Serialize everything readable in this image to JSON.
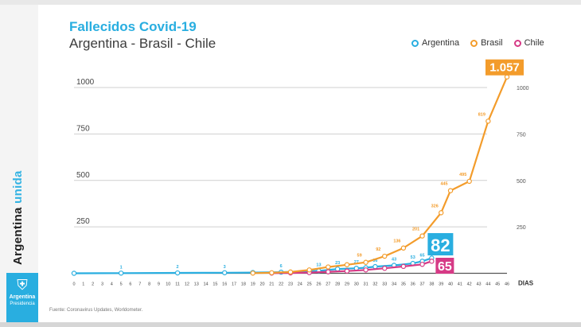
{
  "header": {
    "title": "Fallecidos Covid-19",
    "subtitle": "Argentina - Brasil - Chile"
  },
  "legend": [
    {
      "label": "Argentina",
      "color": "#29aee0"
    },
    {
      "label": "Brasil",
      "color": "#f39c2b"
    },
    {
      "label": "Chile",
      "color": "#d63a86"
    }
  ],
  "sidebar": {
    "brand_word1": "Argentina",
    "brand_word2": "unida",
    "badge_line1": "Argentina",
    "badge_line2": "Presidencia"
  },
  "source_text": "Fuente: Coronavirus Updates, Worldometer.",
  "chart_data": {
    "type": "line",
    "title": "Fallecidos Covid-19",
    "subtitle": "Argentina - Brasil - Chile",
    "xlabel": "DIAS",
    "ylabel": "",
    "xlim": [
      0,
      46
    ],
    "ylim": [
      0,
      1100
    ],
    "y_ticks": [
      250,
      500,
      750,
      1000
    ],
    "y_tick_labels_left": [
      "250",
      "500",
      "750",
      "1000"
    ],
    "y_tick_labels_right": [
      "250",
      "500",
      "750",
      "1000"
    ],
    "x_ticks": [
      0,
      1,
      2,
      3,
      4,
      5,
      6,
      7,
      8,
      9,
      10,
      11,
      12,
      13,
      14,
      15,
      16,
      17,
      18,
      19,
      20,
      21,
      22,
      23,
      24,
      25,
      26,
      27,
      28,
      29,
      30,
      31,
      32,
      33,
      34,
      35,
      36,
      37,
      38,
      39,
      40,
      41,
      42,
      43,
      44,
      45,
      46
    ],
    "grid": "horizontal",
    "legend_position": "top-right",
    "series": [
      {
        "name": "Argentina",
        "color": "#29aee0",
        "points": [
          {
            "x": 0,
            "y": 0
          },
          {
            "x": 5,
            "y": 1
          },
          {
            "x": 11,
            "y": 2
          },
          {
            "x": 16,
            "y": 3
          },
          {
            "x": 19,
            "y": 4
          },
          {
            "x": 22,
            "y": 6
          },
          {
            "x": 26,
            "y": 13
          },
          {
            "x": 28,
            "y": 23
          },
          {
            "x": 30,
            "y": 27
          },
          {
            "x": 31,
            "y": 30
          },
          {
            "x": 32,
            "y": 36
          },
          {
            "x": 34,
            "y": 43
          },
          {
            "x": 36,
            "y": 53
          },
          {
            "x": 37,
            "y": 65
          },
          {
            "x": 38,
            "y": 82
          }
        ],
        "point_labels": [
          {
            "x": 5,
            "y": 1,
            "text": "1"
          },
          {
            "x": 11,
            "y": 2,
            "text": "2"
          },
          {
            "x": 16,
            "y": 3,
            "text": "3"
          },
          {
            "x": 22,
            "y": 6,
            "text": "6"
          },
          {
            "x": 26,
            "y": 13,
            "text": "13"
          },
          {
            "x": 28,
            "y": 23,
            "text": "23"
          },
          {
            "x": 30,
            "y": 27,
            "text": "27"
          },
          {
            "x": 32,
            "y": 36,
            "text": "36"
          },
          {
            "x": 34,
            "y": 43,
            "text": "43"
          },
          {
            "x": 36,
            "y": 53,
            "text": "53"
          },
          {
            "x": 37,
            "y": 65,
            "text": "65"
          }
        ],
        "end_label": "82"
      },
      {
        "name": "Brasil",
        "color": "#f39c2b",
        "points": [
          {
            "x": 19,
            "y": 1
          },
          {
            "x": 21,
            "y": 3
          },
          {
            "x": 23,
            "y": 7
          },
          {
            "x": 25,
            "y": 18
          },
          {
            "x": 27,
            "y": 34
          },
          {
            "x": 29,
            "y": 46
          },
          {
            "x": 31,
            "y": 59
          },
          {
            "x": 33,
            "y": 92
          },
          {
            "x": 35,
            "y": 136
          },
          {
            "x": 37,
            "y": 201
          },
          {
            "x": 39,
            "y": 326
          },
          {
            "x": 40,
            "y": 445
          },
          {
            "x": 42,
            "y": 495
          },
          {
            "x": 44,
            "y": 819
          },
          {
            "x": 46,
            "y": 1057
          }
        ],
        "point_labels": [
          {
            "x": 31,
            "y": 59,
            "text": "59"
          },
          {
            "x": 33,
            "y": 92,
            "text": "92"
          },
          {
            "x": 35,
            "y": 136,
            "text": "136"
          },
          {
            "x": 37,
            "y": 201,
            "text": "201"
          },
          {
            "x": 39,
            "y": 326,
            "text": "326"
          },
          {
            "x": 40,
            "y": 445,
            "text": "445"
          },
          {
            "x": 42,
            "y": 495,
            "text": "495"
          },
          {
            "x": 44,
            "y": 819,
            "text": "819"
          }
        ],
        "end_label": "1.057"
      },
      {
        "name": "Chile",
        "color": "#d63a86",
        "points": [
          {
            "x": 21,
            "y": 1
          },
          {
            "x": 23,
            "y": 2
          },
          {
            "x": 25,
            "y": 4
          },
          {
            "x": 27,
            "y": 8
          },
          {
            "x": 29,
            "y": 12
          },
          {
            "x": 31,
            "y": 18
          },
          {
            "x": 33,
            "y": 27
          },
          {
            "x": 35,
            "y": 37
          },
          {
            "x": 37,
            "y": 48
          },
          {
            "x": 38,
            "y": 65
          }
        ],
        "point_labels": [],
        "end_label": "65"
      }
    ]
  }
}
